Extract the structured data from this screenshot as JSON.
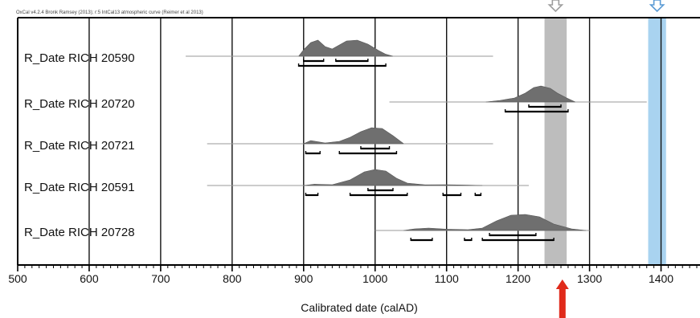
{
  "chart_data": {
    "type": "range",
    "header": "OxCal v4.2.4 Bronk Ramsey (2013); r:5 IntCal13 atmospheric curve (Reimer et al 2013)",
    "xlabel": "Calibrated date (calAD)",
    "xlim": [
      500,
      1450
    ],
    "xticks": [
      500,
      600,
      700,
      800,
      900,
      1000,
      1100,
      1200,
      1300,
      1400
    ],
    "grid": true,
    "highlight_bands": [
      {
        "from": 1237,
        "to": 1268,
        "color": "#bdbdbd",
        "marker_arrow": "outline",
        "marker_color": "#9e9e9e"
      },
      {
        "from": 1382,
        "to": 1407,
        "color": "#a9d3f0",
        "marker_arrow": "outline",
        "marker_color": "#5b9bd5"
      }
    ],
    "bottom_marker": {
      "x": 1262,
      "color": "#e02a1a"
    },
    "colors": {
      "distribution": "#6f6f6f",
      "prior": "#9a9a9a",
      "range": "#000000",
      "axis": "#000000"
    },
    "series": [
      {
        "name": "R_Date RICH 20590",
        "prior_span": [
          735,
          1165
        ],
        "distribution": [
          [
            893,
            0
          ],
          [
            900,
            0.4
          ],
          [
            910,
            0.85
          ],
          [
            920,
            1
          ],
          [
            930,
            0.6
          ],
          [
            940,
            0.45
          ],
          [
            950,
            0.7
          ],
          [
            960,
            0.95
          ],
          [
            975,
            1
          ],
          [
            990,
            0.75
          ],
          [
            1005,
            0.35
          ],
          [
            1015,
            0.12
          ],
          [
            1025,
            0
          ]
        ],
        "ranges_68": [
          [
            900,
            928
          ],
          [
            945,
            990
          ]
        ],
        "ranges_95": [
          [
            893,
            1015
          ]
        ]
      },
      {
        "name": "R_Date RICH 20720",
        "prior_span": [
          1020,
          1380
        ],
        "distribution": [
          [
            1155,
            0
          ],
          [
            1175,
            0.1
          ],
          [
            1195,
            0.25
          ],
          [
            1210,
            0.55
          ],
          [
            1222,
            0.9
          ],
          [
            1232,
            1
          ],
          [
            1245,
            0.85
          ],
          [
            1255,
            0.55
          ],
          [
            1268,
            0.25
          ],
          [
            1280,
            0
          ]
        ],
        "ranges_68": [
          [
            1215,
            1260
          ]
        ],
        "ranges_95": [
          [
            1182,
            1270
          ]
        ]
      },
      {
        "name": "R_Date RICH 20721",
        "prior_span": [
          765,
          1165
        ],
        "distribution": [
          [
            900,
            0
          ],
          [
            910,
            0.2
          ],
          [
            920,
            0.12
          ],
          [
            930,
            0.05
          ],
          [
            950,
            0.15
          ],
          [
            965,
            0.4
          ],
          [
            980,
            0.75
          ],
          [
            995,
            1
          ],
          [
            1010,
            0.95
          ],
          [
            1025,
            0.5
          ],
          [
            1040,
            0
          ]
        ],
        "ranges_68": [
          [
            980,
            1020
          ]
        ],
        "ranges_95": [
          [
            903,
            923
          ],
          [
            950,
            1030
          ]
        ]
      },
      {
        "name": "R_Date RICH 20591",
        "prior_span": [
          765,
          1215
        ],
        "distribution": [
          [
            900,
            0
          ],
          [
            915,
            0.08
          ],
          [
            940,
            0.05
          ],
          [
            965,
            0.35
          ],
          [
            985,
            0.85
          ],
          [
            1000,
            1
          ],
          [
            1015,
            0.9
          ],
          [
            1030,
            0.45
          ],
          [
            1045,
            0.15
          ],
          [
            1070,
            0.04
          ],
          [
            1100,
            0.05
          ],
          [
            1130,
            0.02
          ],
          [
            1150,
            0
          ]
        ],
        "ranges_68": [
          [
            990,
            1025
          ]
        ],
        "ranges_95": [
          [
            903,
            920
          ],
          [
            965,
            1045
          ],
          [
            1095,
            1120
          ],
          [
            1140,
            1148
          ]
        ]
      },
      {
        "name": "R_Date RICH 20728",
        "prior_span": [
          1000,
          1300
        ],
        "distribution": [
          [
            1040,
            0
          ],
          [
            1055,
            0.1
          ],
          [
            1075,
            0.15
          ],
          [
            1100,
            0.08
          ],
          [
            1130,
            0.05
          ],
          [
            1150,
            0.15
          ],
          [
            1170,
            0.6
          ],
          [
            1190,
            0.95
          ],
          [
            1210,
            1
          ],
          [
            1230,
            0.85
          ],
          [
            1250,
            0.4
          ],
          [
            1275,
            0.1
          ],
          [
            1295,
            0
          ]
        ],
        "ranges_68": [
          [
            1160,
            1225
          ]
        ],
        "ranges_95": [
          [
            1050,
            1080
          ],
          [
            1125,
            1135
          ],
          [
            1150,
            1250
          ]
        ]
      }
    ]
  }
}
